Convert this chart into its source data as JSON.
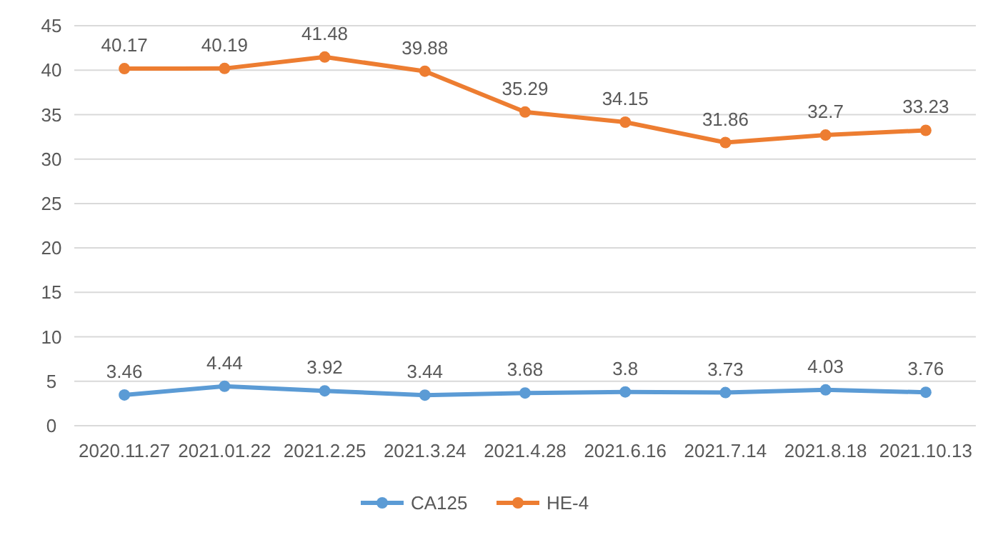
{
  "chart_data": {
    "type": "line",
    "categories": [
      "2020.11.27",
      "2021.01.22",
      "2021.2.25",
      "2021.3.24",
      "2021.4.28",
      "2021.6.16",
      "2021.7.14",
      "2021.8.18",
      "2021.10.13"
    ],
    "series": [
      {
        "name": "CA125",
        "color": "#5b9bd5",
        "values": [
          3.46,
          4.44,
          3.92,
          3.44,
          3.68,
          3.8,
          3.73,
          4.03,
          3.76
        ]
      },
      {
        "name": "HE-4",
        "color": "#ed7d31",
        "values": [
          40.17,
          40.19,
          41.48,
          39.88,
          35.29,
          34.15,
          31.86,
          32.7,
          33.23
        ]
      }
    ],
    "ylim": [
      0,
      45
    ],
    "yticks": [
      0,
      5,
      10,
      15,
      20,
      25,
      30,
      35,
      40,
      45
    ],
    "grid": "y",
    "legend": "bottom",
    "marker": "circle",
    "line_style": "solid",
    "data_labels": true
  }
}
